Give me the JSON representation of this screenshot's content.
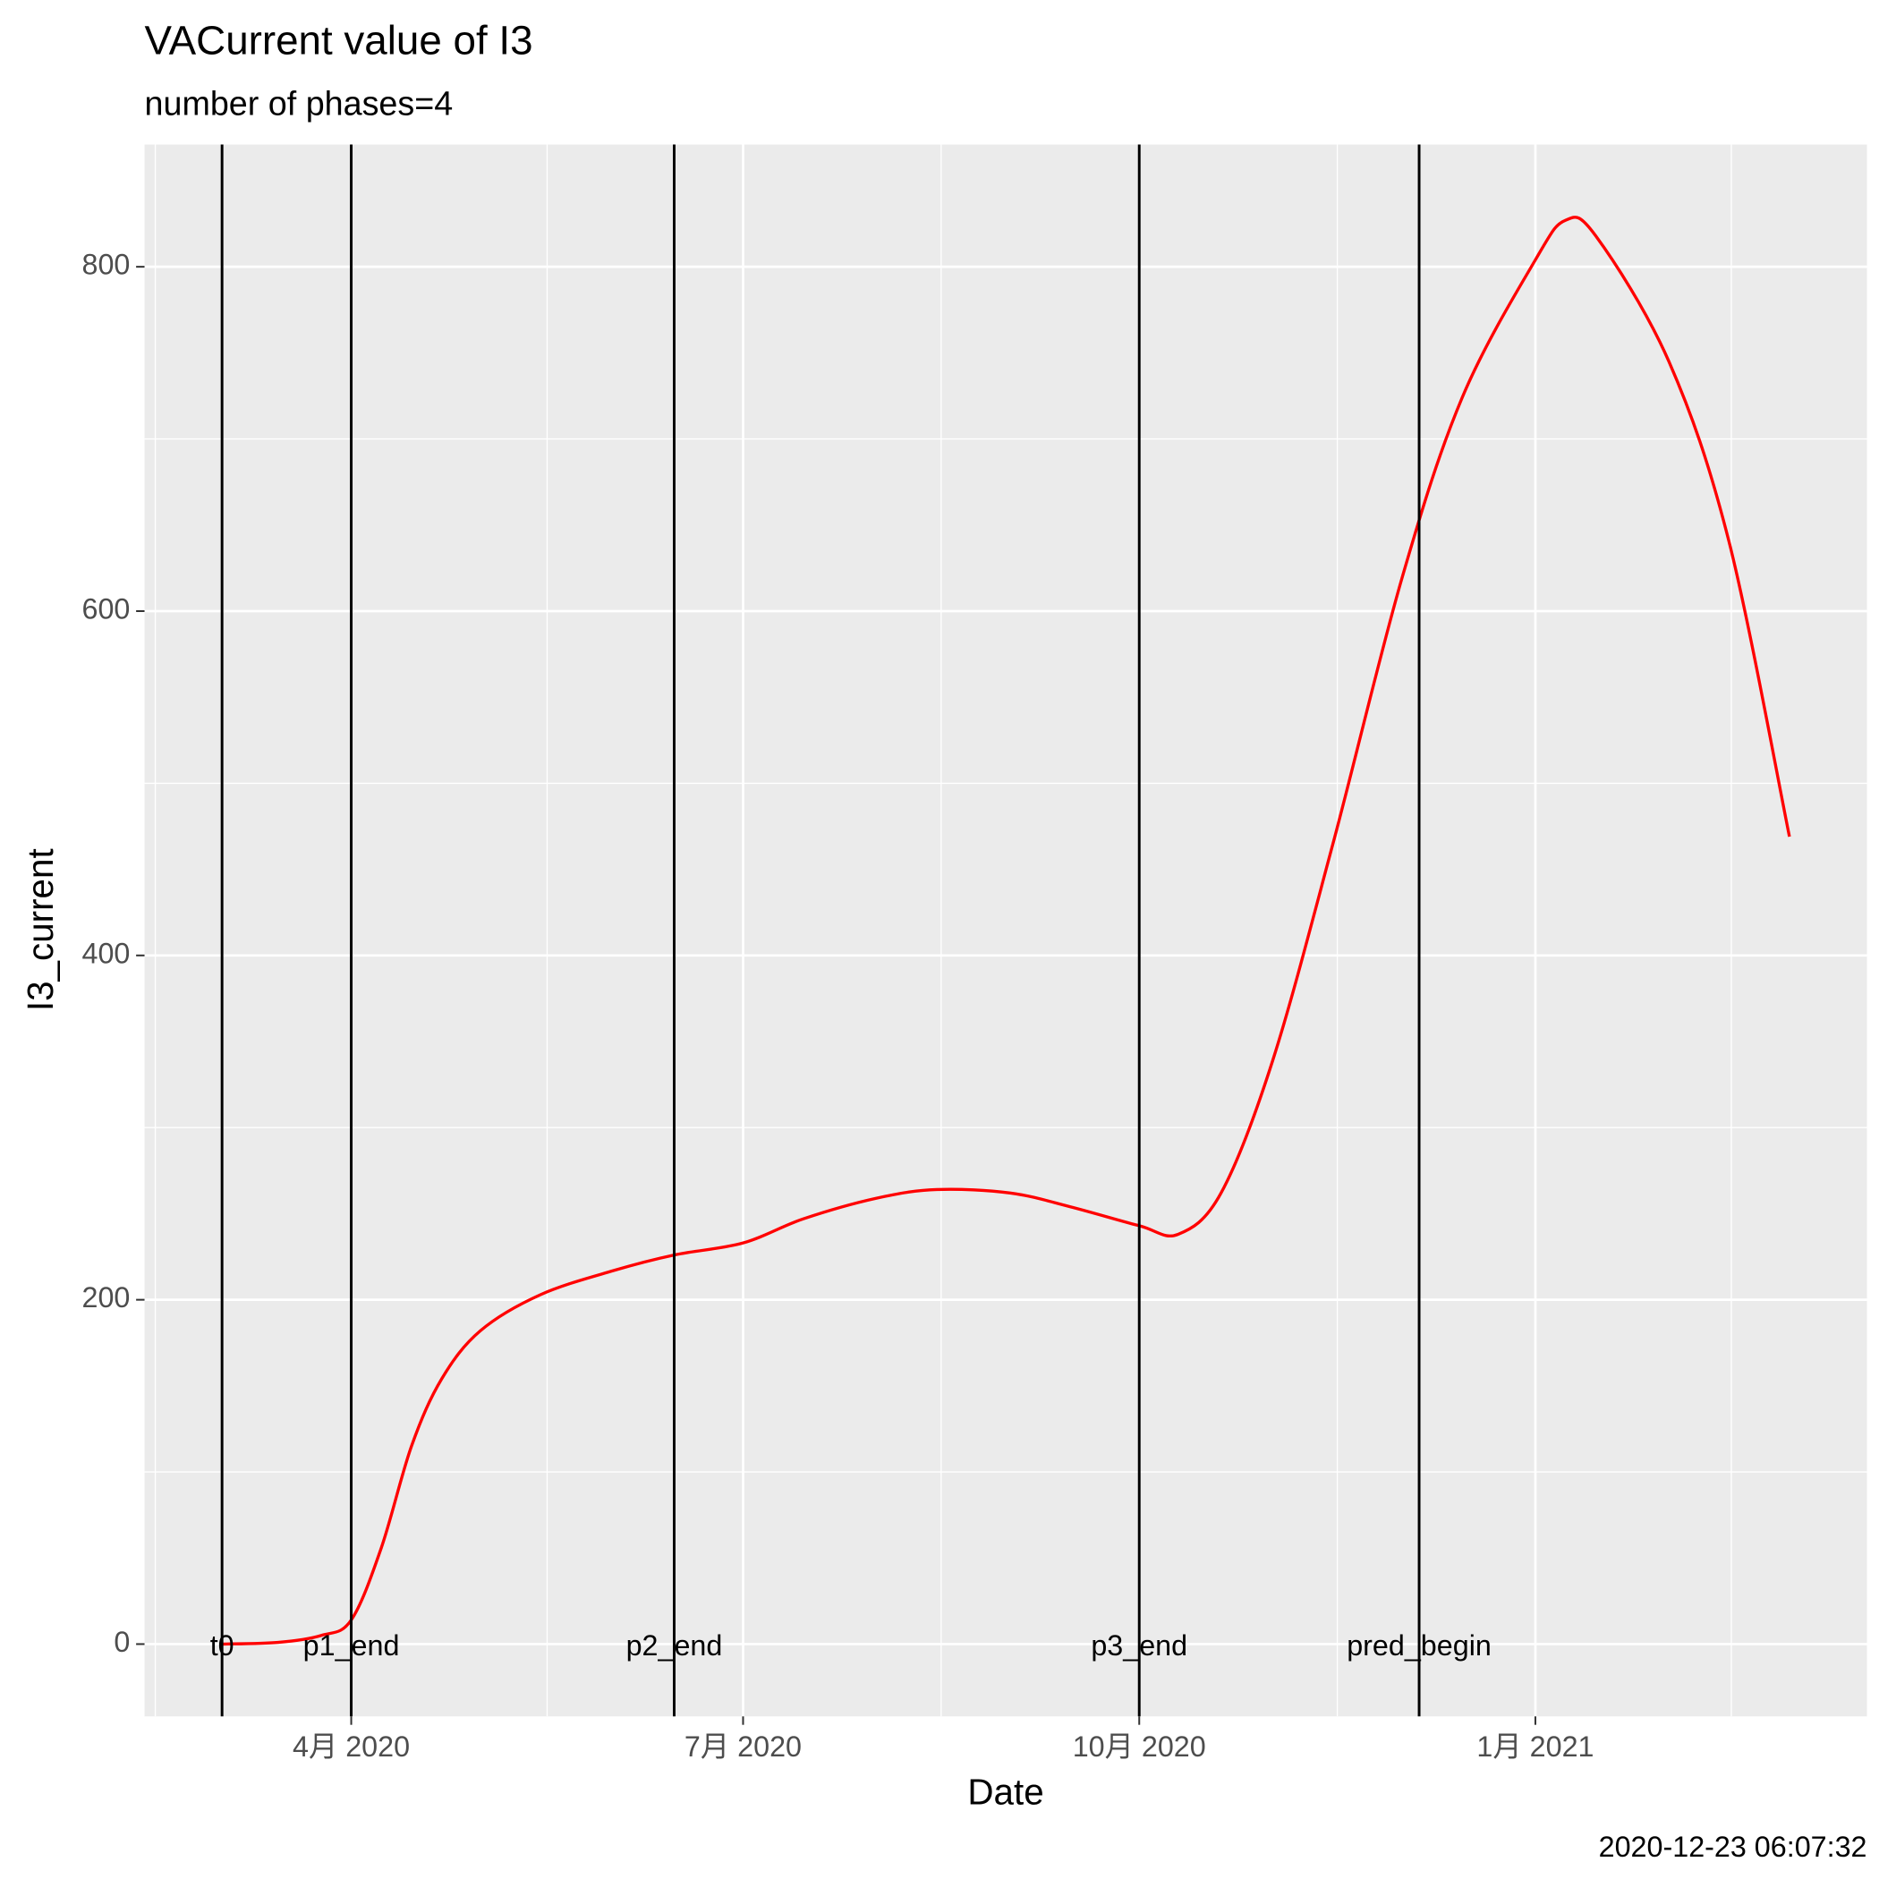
{
  "chart_data": {
    "type": "line",
    "title": "VACurrent value of I3",
    "subtitle": "number of phases=4",
    "caption": "2020-12-23 06:07:32",
    "x_label": "Date",
    "y_label": "I3_current",
    "x": [
      "2020-03-02",
      "2020-03-15",
      "2020-03-25",
      "2020-04-01",
      "2020-04-08",
      "2020-04-15",
      "2020-04-22",
      "2020-05-01",
      "2020-05-15",
      "2020-06-01",
      "2020-06-15",
      "2020-07-01",
      "2020-07-15",
      "2020-08-01",
      "2020-08-15",
      "2020-09-01",
      "2020-09-15",
      "2020-10-01",
      "2020-10-10",
      "2020-10-20",
      "2020-11-01",
      "2020-11-15",
      "2020-12-01",
      "2020-12-15",
      "2021-01-01",
      "2021-01-08",
      "2021-01-15",
      "2021-02-01",
      "2021-02-15",
      "2021-03-01"
    ],
    "values": [
      0,
      1,
      5,
      14,
      56,
      115,
      154,
      182,
      203,
      217,
      226,
      233,
      247,
      259,
      264,
      262,
      254,
      243,
      238,
      262,
      339,
      465,
      619,
      724,
      804,
      827,
      818,
      745,
      640,
      469
    ],
    "color": "#ff0000",
    "vlines": [
      {
        "x": "2020-03-02",
        "label": "t0"
      },
      {
        "x": "2020-04-01",
        "label": "p1_end"
      },
      {
        "x": "2020-06-15",
        "label": "p2_end"
      },
      {
        "x": "2020-10-01",
        "label": "p3_end"
      },
      {
        "x": "2020-12-05",
        "label": "pred_begin"
      }
    ],
    "xlim": [
      "2020-02-13",
      "2021-03-19"
    ],
    "xticks": [
      {
        "value": "2020-04-01",
        "label": "4月 2020"
      },
      {
        "value": "2020-07-01",
        "label": "7月 2020"
      },
      {
        "value": "2020-10-01",
        "label": "10月 2020"
      },
      {
        "value": "2021-01-01",
        "label": "1月 2021"
      }
    ],
    "ylim": [
      -42,
      871
    ],
    "yticks": [
      0,
      200,
      400,
      600,
      800
    ],
    "grid": true
  }
}
